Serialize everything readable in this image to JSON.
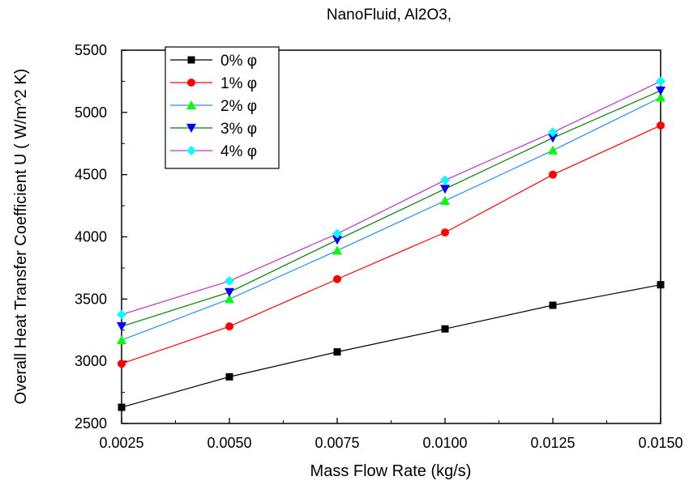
{
  "chart_data": {
    "type": "line",
    "title": "NanoFluid, Al2O3,",
    "xlabel": "Mass Flow Rate (kg/s)",
    "ylabel": "Overall Heat Transfer Coefficient U ( W/m^2 K)",
    "x": [
      0.0025,
      0.005,
      0.0075,
      0.01,
      0.0125,
      0.015
    ],
    "x_tick_labels": [
      "0.0025",
      "0.0050",
      "0.0075",
      "0.0100",
      "0.0125",
      "0.0150"
    ],
    "y_ticks": [
      2500,
      3000,
      3500,
      4000,
      4500,
      5000,
      5500
    ],
    "xlim": [
      0.0025,
      0.015
    ],
    "ylim": [
      2500,
      5500
    ],
    "grid": false,
    "legend_position": "top-left",
    "series": [
      {
        "name": "0% φ",
        "color": "#000000",
        "marker": "square",
        "values": [
          2630,
          2875,
          3075,
          3260,
          3450,
          3615
        ]
      },
      {
        "name": "1% φ",
        "color": "#ff0000",
        "marker": "circle",
        "values": [
          2980,
          3280,
          3660,
          4035,
          4500,
          4895
        ]
      },
      {
        "name": "2% φ",
        "color": "#00ff00",
        "line_color": "#1e90ff",
        "marker": "triangle-up",
        "values": [
          3170,
          3500,
          3890,
          4290,
          4695,
          5120
        ]
      },
      {
        "name": "3% φ",
        "color": "#0000ff",
        "line_color": "#008000",
        "marker": "triangle-down",
        "values": [
          3280,
          3555,
          3975,
          4385,
          4795,
          5175
        ]
      },
      {
        "name": "4% φ",
        "color": "#00ffff",
        "line_color": "#c030c0",
        "marker": "diamond",
        "values": [
          3375,
          3645,
          4025,
          4455,
          4840,
          5250
        ]
      }
    ]
  }
}
